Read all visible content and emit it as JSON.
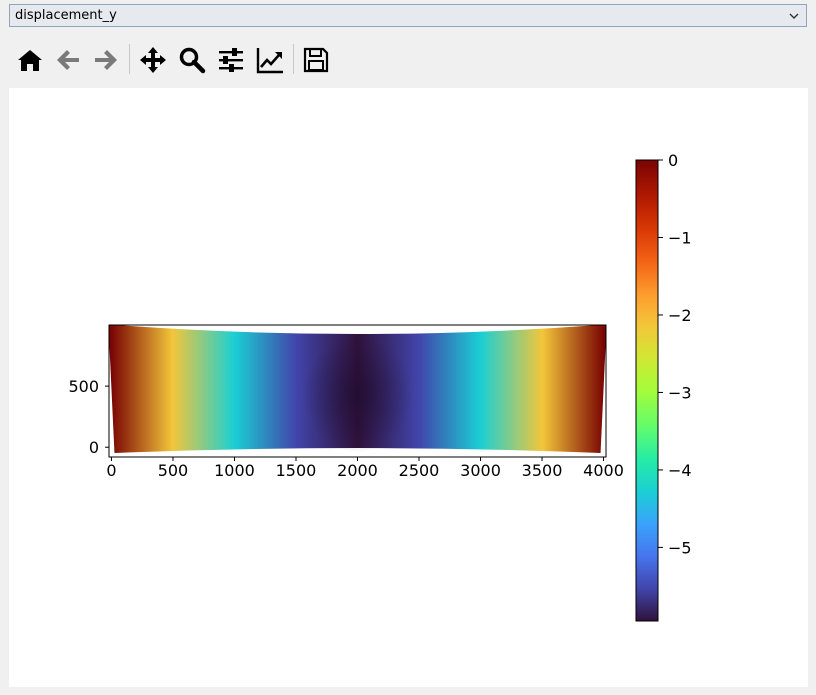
{
  "field_selector": {
    "value": "displacement_y"
  },
  "toolbar": {
    "icons": [
      "home-icon",
      "back-arrow-icon",
      "forward-arrow-icon",
      "pan-icon",
      "zoom-icon",
      "subplots-config-icon",
      "edit-axes-icon",
      "save-icon"
    ]
  },
  "chart_data": {
    "type": "heatmap",
    "title": "",
    "xlabel": "",
    "ylabel": "",
    "xlim": [
      -20,
      4020
    ],
    "ylim": [
      -80,
      1000
    ],
    "x_ticks": [
      0,
      500,
      1000,
      1500,
      2000,
      2500,
      3000,
      3500,
      4000
    ],
    "x_tick_labels": [
      "0",
      "500",
      "1000",
      "1500",
      "2000",
      "2500",
      "3000",
      "3500",
      "4000"
    ],
    "y_ticks": [
      0,
      500
    ],
    "y_tick_labels": [
      "0",
      "500"
    ],
    "field": "displacement_y",
    "value_range": [
      -5.95,
      0
    ],
    "colormap": "turbo",
    "colorbar": {
      "ticks": [
        0,
        -1,
        -2,
        -3,
        -4,
        -5
      ],
      "tick_labels": [
        "0",
        "−1",
        "−2",
        "−3",
        "−4",
        "−5"
      ],
      "range": [
        -5.95,
        0
      ],
      "placement": "right"
    },
    "samples": [
      {
        "x": 0,
        "value": 0
      },
      {
        "x": 500,
        "value": -2.2
      },
      {
        "x": 1000,
        "value": -4.2
      },
      {
        "x": 1500,
        "value": -5.5
      },
      {
        "x": 2000,
        "value": -5.95
      },
      {
        "x": 2500,
        "value": -5.5
      },
      {
        "x": 3000,
        "value": -4.2
      },
      {
        "x": 3500,
        "value": -2.2
      },
      {
        "x": 4000,
        "value": 0
      }
    ]
  }
}
